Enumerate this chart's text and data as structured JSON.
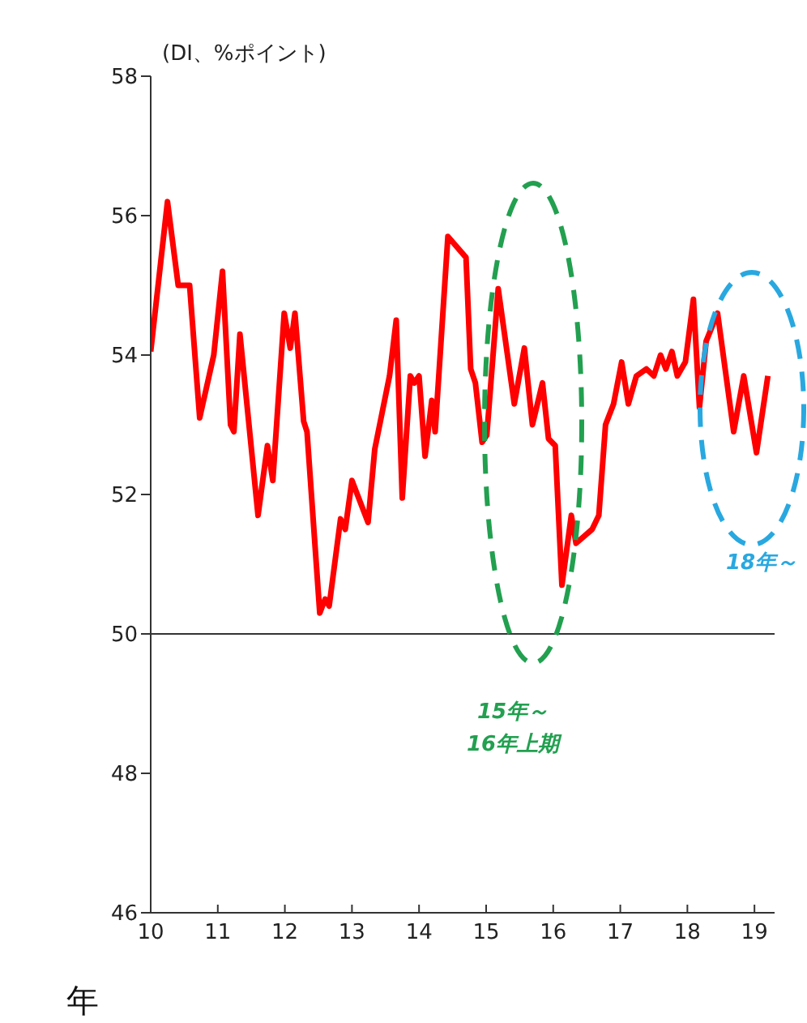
{
  "chart_data": {
    "type": "line",
    "ylabel": "(DI、%ポイント)",
    "xlabel": "年",
    "x": [
      10,
      10.25,
      10.41,
      10.58,
      10.73,
      10.94,
      11.07,
      11.19,
      11.24,
      11.33,
      11.6,
      11.74,
      11.82,
      11.99,
      12.08,
      12.15,
      12.28,
      12.33,
      12.52,
      12.6,
      12.66,
      12.83,
      12.9,
      13.0,
      13.24,
      13.34,
      13.56,
      13.66,
      13.75,
      13.87,
      13.93,
      14.0,
      14.09,
      14.19,
      14.24,
      14.43,
      14.7,
      14.77,
      14.84,
      14.94,
      15.01,
      15.18,
      15.42,
      15.57,
      15.69,
      15.84,
      15.93,
      16.03,
      16.13,
      16.27,
      16.34,
      16.46,
      16.58,
      16.68,
      16.78,
      16.9,
      17.02,
      17.12,
      17.24,
      17.39,
      17.5,
      17.6,
      17.68,
      17.77,
      17.85,
      17.97,
      18.09,
      18.18,
      18.28,
      18.45,
      18.69,
      18.84,
      19.03,
      19.2
    ],
    "series": [
      {
        "color": "#ff0000",
        "values": [
          54.05,
          56.2,
          55.0,
          55.0,
          53.1,
          54.0,
          55.2,
          53.0,
          52.9,
          54.3,
          51.7,
          52.7,
          52.2,
          54.6,
          54.1,
          54.6,
          53.05,
          52.9,
          50.3,
          50.5,
          50.4,
          51.65,
          51.5,
          52.2,
          51.6,
          52.65,
          53.7,
          54.5,
          51.95,
          53.7,
          53.6,
          53.7,
          52.55,
          53.35,
          52.9,
          55.7,
          55.4,
          53.8,
          53.6,
          52.75,
          52.85,
          54.95,
          53.3,
          54.1,
          53.0,
          53.6,
          52.8,
          52.7,
          50.7,
          51.7,
          51.3,
          51.4,
          51.5,
          51.7,
          53.0,
          53.3,
          53.9,
          53.3,
          53.7,
          53.8,
          53.7,
          54.0,
          53.8,
          54.05,
          53.7,
          53.9,
          54.8,
          53.25,
          54.2,
          54.6,
          52.9,
          53.7,
          52.6,
          53.7
        ]
      }
    ],
    "xlim": [
      10,
      19.3
    ],
    "xticks": [
      10,
      11,
      12,
      13,
      14,
      15,
      16,
      17,
      18,
      19
    ],
    "ylim": [
      46,
      58
    ],
    "yticks": [
      46,
      48,
      50,
      52,
      54,
      56,
      58
    ],
    "ref_lines": [
      {
        "axis": "y",
        "value": 50,
        "color": "#333333"
      }
    ],
    "annotations": [
      "15年～\n16年上期",
      "18年～"
    ],
    "grid": false,
    "legend": false,
    "marker": "none",
    "line_style": "solid"
  }
}
